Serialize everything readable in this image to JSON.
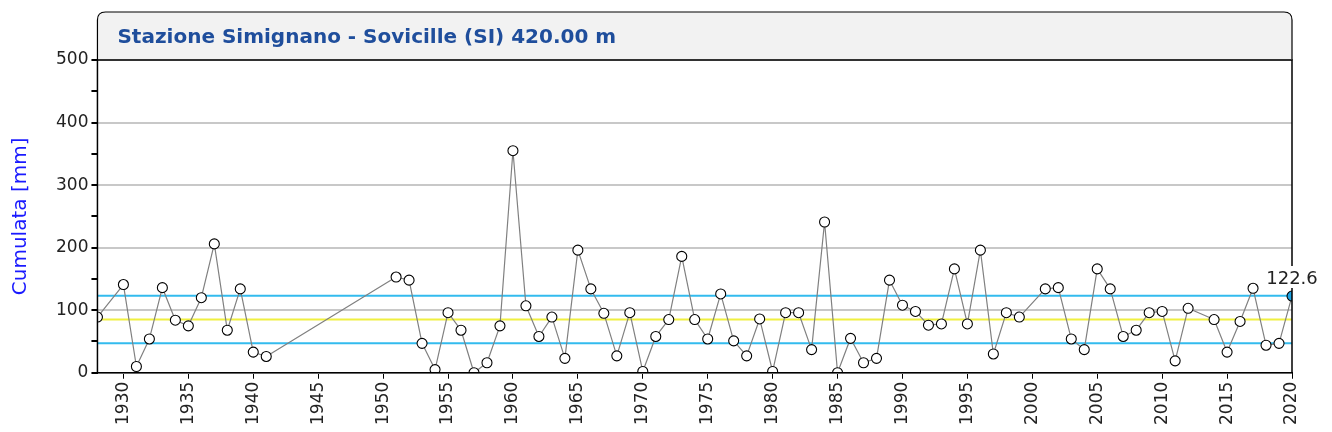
{
  "chart_data": {
    "type": "line",
    "title": "Stazione Simignano - Sovicille (SI) 420.00 m",
    "ylabel": "Cumulata [mm]",
    "xlim": [
      1928,
      2020
    ],
    "xticks": [
      1930,
      1935,
      1940,
      1945,
      1950,
      1955,
      1960,
      1965,
      1970,
      1975,
      1980,
      1985,
      1990,
      1995,
      2000,
      2005,
      2010,
      2015,
      2020
    ],
    "ylim": [
      0,
      500
    ],
    "yticks": [
      0,
      {
        "value": 50,
        "label": null
      },
      100,
      {
        "value": 150,
        "label": null
      },
      200,
      {
        "value": 250,
        "label": null
      },
      300,
      {
        "value": 350,
        "label": null
      },
      400,
      {
        "value": 450,
        "label": null
      },
      500
    ],
    "grid": "y",
    "legend": false,
    "marker": "circle",
    "line_style": "solid",
    "ref_lines": [
      {
        "axis": "y",
        "value": 123,
        "color": "#33bbee"
      },
      {
        "axis": "y",
        "value": 85,
        "color": "#f0f040"
      },
      {
        "axis": "y",
        "value": 47,
        "color": "#33bbee"
      }
    ],
    "series": [
      {
        "color": "#808080",
        "x": [
          1928,
          1930,
          1931,
          1932,
          1933,
          1934,
          1935,
          1936,
          1937,
          1938,
          1939,
          1940,
          1941,
          1951,
          1952,
          1953,
          1954,
          1955,
          1956,
          1957,
          1958,
          1959,
          1960,
          1961,
          1962,
          1963,
          1964,
          1965,
          1966,
          1967,
          1968,
          1969,
          1970,
          1971,
          1972,
          1973,
          1974,
          1975,
          1976,
          1977,
          1978,
          1979,
          1980,
          1981,
          1982,
          1983,
          1984,
          1985,
          1986,
          1987,
          1988,
          1989,
          1990,
          1991,
          1992,
          1993,
          1994,
          1995,
          1996,
          1997,
          1998,
          1999,
          2001,
          2002,
          2003,
          2004,
          2005,
          2006,
          2007,
          2008,
          2009,
          2010,
          2011,
          2012,
          2014,
          2015,
          2016,
          2017,
          2018,
          2019,
          2020
        ],
        "values": [
          89,
          141,
          10,
          54,
          136,
          84,
          75,
          120,
          206,
          68,
          134,
          33,
          26,
          153,
          148,
          47,
          5,
          96,
          68,
          0,
          16,
          75,
          355,
          107,
          58,
          89,
          23,
          196,
          134,
          95,
          27,
          96,
          2,
          58,
          85,
          186,
          85,
          54,
          126,
          51,
          27,
          86,
          2,
          96,
          96,
          37,
          241,
          0,
          55,
          16,
          23,
          148,
          108,
          98,
          76,
          78,
          166,
          78,
          196,
          30,
          96,
          89,
          134,
          136,
          54,
          37,
          166,
          134,
          58,
          68,
          96,
          98,
          19,
          103,
          85,
          33,
          82,
          135,
          44,
          47,
          122.6
        ],
        "colors": [
          "#ffffff",
          "#ffffff",
          "#ffffff",
          "#ffffff",
          "#ffffff",
          "#ffffff",
          "#ffffff",
          "#ffffff",
          "#ffffff",
          "#ffffff",
          "#ffffff",
          "#ffffff",
          "#ffffff",
          "#ffffff",
          "#ffffff",
          "#ffffff",
          "#ffffff",
          "#ffffff",
          "#ffffff",
          "#ffffff",
          "#ffffff",
          "#ffffff",
          "#ffffff",
          "#ffffff",
          "#ffffff",
          "#ffffff",
          "#ffffff",
          "#ffffff",
          "#ffffff",
          "#ffffff",
          "#ffffff",
          "#ffffff",
          "#ffffff",
          "#ffffff",
          "#ffffff",
          "#ffffff",
          "#ffffff",
          "#ffffff",
          "#ffffff",
          "#ffffff",
          "#ffffff",
          "#ffffff",
          "#ffffff",
          "#ffffff",
          "#ffffff",
          "#ffffff",
          "#ffffff",
          "#ffffff",
          "#ffffff",
          "#ffffff",
          "#ffffff",
          "#ffffff",
          "#ffffff",
          "#ffffff",
          "#ffffff",
          "#ffffff",
          "#ffffff",
          "#ffffff",
          "#ffffff",
          "#ffffff",
          "#ffffff",
          "#ffffff",
          "#ffffff",
          "#ffffff",
          "#ffffff",
          "#ffffff",
          "#ffffff",
          "#ffffff",
          "#ffffff",
          "#ffffff",
          "#ffffff",
          "#ffffff",
          "#ffffff",
          "#ffffff",
          "#ffffff",
          "#ffffff",
          "#ffffff",
          "#ffffff",
          "#ffffff",
          "#ffffff",
          "#1ba1e2"
        ],
        "value_labels": [
          null,
          null,
          null,
          null,
          null,
          null,
          null,
          null,
          null,
          null,
          null,
          null,
          null,
          null,
          null,
          null,
          null,
          null,
          null,
          null,
          null,
          null,
          null,
          null,
          null,
          null,
          null,
          null,
          null,
          null,
          null,
          null,
          null,
          null,
          null,
          null,
          null,
          null,
          null,
          null,
          null,
          null,
          null,
          null,
          null,
          null,
          null,
          null,
          null,
          null,
          null,
          null,
          null,
          null,
          null,
          null,
          null,
          null,
          null,
          null,
          null,
          null,
          null,
          null,
          null,
          null,
          null,
          null,
          null,
          null,
          null,
          null,
          null,
          null,
          null,
          null,
          null,
          null,
          null,
          null,
          "122.6"
        ]
      }
    ]
  }
}
